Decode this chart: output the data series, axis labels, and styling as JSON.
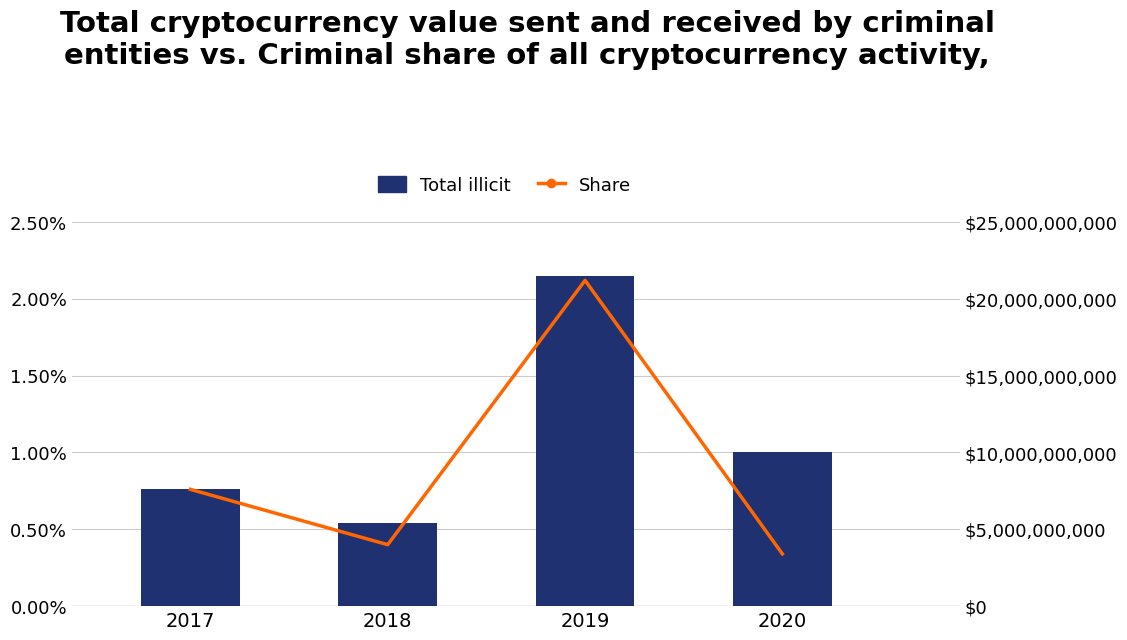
{
  "title": "Total cryptocurrency value sent and received by criminal\nentities vs. Criminal share of all cryptocurrency activity,",
  "years": [
    2017,
    2018,
    2019,
    2020
  ],
  "bar_values_pct": [
    0.0076,
    0.0054,
    0.0215,
    0.01
  ],
  "line_values_pct": [
    0.0076,
    0.004,
    0.0212,
    0.0034
  ],
  "bar_color": "#1f3171",
  "line_color": "#ff6600",
  "bar_label": "Total illicit",
  "line_label": "Share",
  "left_yticks": [
    0.0,
    0.005,
    0.01,
    0.015,
    0.02,
    0.025
  ],
  "left_yticklabels": [
    "0.00%",
    "0.50%",
    "1.00%",
    "1.50%",
    "2.00%",
    "2.50%"
  ],
  "right_yticks": [
    0,
    5000000000,
    10000000000,
    15000000000,
    20000000000,
    25000000000
  ],
  "right_yticklabels": [
    "$0",
    "$5,000,000,000",
    "$10,000,000,000",
    "$15,000,000,000",
    "$20,000,000,000",
    "$25,000,000,000"
  ],
  "ylim": [
    0,
    0.025
  ],
  "background_color": "#ffffff",
  "title_fontsize": 21,
  "tick_fontsize": 13,
  "xtick_fontsize": 14,
  "bar_width": 0.5,
  "xlim": [
    2016.4,
    2020.9
  ]
}
